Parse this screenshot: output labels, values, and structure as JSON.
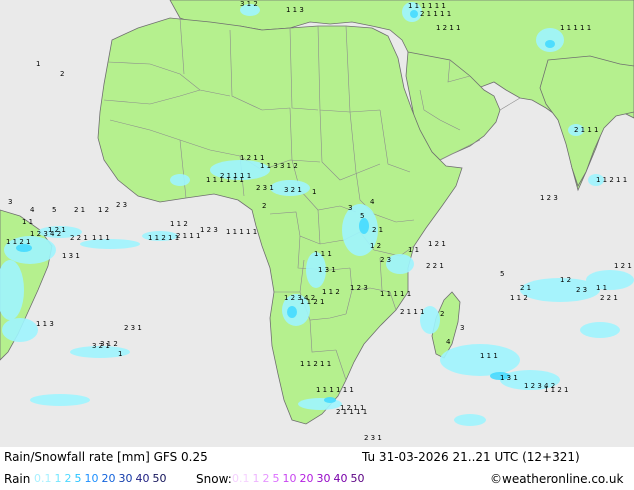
{
  "colors": {
    "ocean": "#eaeaea",
    "land": "#b5f08e",
    "border": "#8c8c8c",
    "coast": "#6f6f6f",
    "rain_light": "#9ff5ff",
    "rain_mid": "#3fd8ff"
  },
  "footer": {
    "title": "Rain/Snowfall rate [mm] GFS 0.25",
    "timestamp": "Tu 31-03-2026 21..21 UTC (12+321)",
    "rain_label": "Rain",
    "snow_label": "Snow:",
    "credit": "©weatheronline.co.uk",
    "rain_scale": [
      {
        "t": "0.1",
        "c": "#a8f0ff"
      },
      {
        "t": "1",
        "c": "#75e6ff"
      },
      {
        "t": "2",
        "c": "#4fd8ff"
      },
      {
        "t": "5",
        "c": "#26c3ff"
      },
      {
        "t": "10",
        "c": "#1e90ff"
      },
      {
        "t": "20",
        "c": "#1464dc"
      },
      {
        "t": "30",
        "c": "#143caa"
      },
      {
        "t": "40",
        "c": "#1e1e82"
      },
      {
        "t": "50",
        "c": "#14145a"
      }
    ],
    "snow_scale": [
      {
        "t": "0.1",
        "c": "#f5d2ff"
      },
      {
        "t": "1",
        "c": "#eeb4ff"
      },
      {
        "t": "2",
        "c": "#e696ff"
      },
      {
        "t": "5",
        "c": "#dc6eff"
      },
      {
        "t": "10",
        "c": "#c846f0"
      },
      {
        "t": "20",
        "c": "#b41ee1"
      },
      {
        "t": "30",
        "c": "#960ac8"
      },
      {
        "t": "40",
        "c": "#7800aa"
      },
      {
        "t": "50",
        "c": "#5a0082"
      }
    ]
  },
  "map_labels": [
    "1",
    "2",
    "3",
    "4",
    "5",
    "2 1",
    "1 2",
    "2 3",
    "1 1",
    "1 2 1",
    "2 2 1",
    "1 1 1",
    "1 3 1",
    "1 2 3 4 2",
    "1 1 2 1",
    "1 1 2",
    "1 2 3",
    "1 1 1 1 1",
    "2 1 1 1",
    "1 1 2 1 1",
    "1 1 1 1 1 1",
    "2 1 1 1 1",
    "1 2 1 1",
    "1 1 3",
    "3 1 2",
    "2 3 1",
    "3 2 1"
  ]
}
